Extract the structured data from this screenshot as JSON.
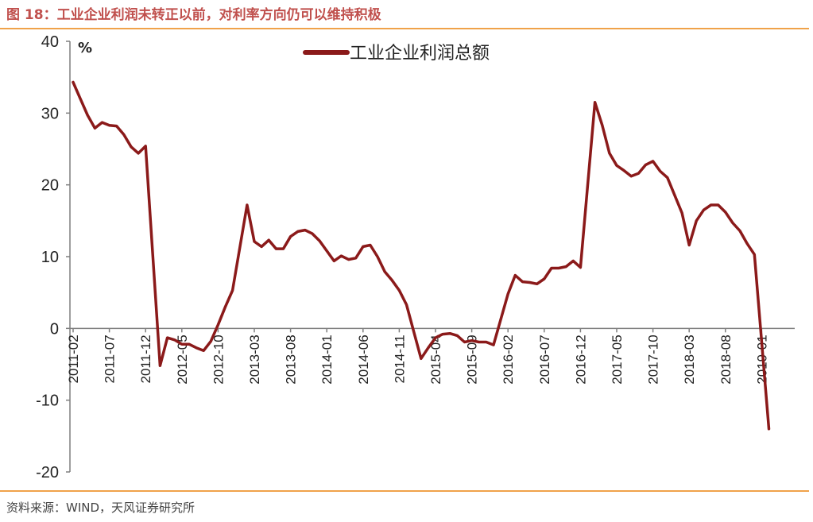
{
  "figure_title": "图 18：工业企业利润未转正以前，对利率方向仍可以维持积极",
  "source": "资料来源：WIND，天风证券研究所",
  "chart_data": {
    "type": "line",
    "title": "",
    "xlabel": "",
    "ylabel": "",
    "unit_label": "%",
    "ylim": [
      -20,
      40
    ],
    "yticks": [
      -20,
      -10,
      0,
      10,
      20,
      30,
      40
    ],
    "xtick_labels": [
      "2011-02",
      "2011-07",
      "2011-12",
      "2012-05",
      "2012-10",
      "2013-03",
      "2013-08",
      "2014-01",
      "2014-06",
      "2014-11",
      "2015-04",
      "2015-09",
      "2016-02",
      "2016-07",
      "2016-12",
      "2017-05",
      "2017-10",
      "2018-03",
      "2018-08",
      "2019-01"
    ],
    "legend_position": "top-center",
    "grid": false,
    "series": [
      {
        "name": "工业企业利润总额",
        "color": "#8b1a1a",
        "x": [
          "2011-02",
          "2011-03",
          "2011-04",
          "2011-05",
          "2011-06",
          "2011-07",
          "2011-08",
          "2011-09",
          "2011-10",
          "2011-11",
          "2011-12",
          "2012-02",
          "2012-03",
          "2012-04",
          "2012-05",
          "2012-06",
          "2012-07",
          "2012-08",
          "2012-09",
          "2012-10",
          "2012-11",
          "2012-12",
          "2013-02",
          "2013-03",
          "2013-04",
          "2013-05",
          "2013-06",
          "2013-07",
          "2013-08",
          "2013-09",
          "2013-10",
          "2013-11",
          "2013-12",
          "2014-02",
          "2014-03",
          "2014-04",
          "2014-05",
          "2014-06",
          "2014-07",
          "2014-08",
          "2014-09",
          "2014-10",
          "2014-11",
          "2014-12",
          "2015-02",
          "2015-03",
          "2015-04",
          "2015-05",
          "2015-06",
          "2015-07",
          "2015-08",
          "2015-09",
          "2015-10",
          "2015-11",
          "2015-12",
          "2016-02",
          "2016-03",
          "2016-04",
          "2016-05",
          "2016-06",
          "2016-07",
          "2016-08",
          "2016-09",
          "2016-10",
          "2016-11",
          "2016-12",
          "2017-02",
          "2017-03",
          "2017-04",
          "2017-05",
          "2017-06",
          "2017-07",
          "2017-08",
          "2017-09",
          "2017-10",
          "2017-11",
          "2017-12",
          "2018-02",
          "2018-03",
          "2018-04",
          "2018-05",
          "2018-06",
          "2018-07",
          "2018-08",
          "2018-09",
          "2018-10",
          "2018-11",
          "2018-12",
          "2019-02"
        ],
        "values": [
          34.3,
          32.0,
          29.7,
          27.9,
          28.7,
          28.3,
          28.2,
          27.0,
          25.3,
          24.4,
          25.4,
          -5.2,
          -1.3,
          -1.6,
          -2.2,
          -2.2,
          -2.7,
          -3.1,
          -1.8,
          0.5,
          3.0,
          5.3,
          17.2,
          12.1,
          11.4,
          12.3,
          11.1,
          11.1,
          12.8,
          13.5,
          13.7,
          13.2,
          12.2,
          9.4,
          10.1,
          9.6,
          9.8,
          11.4,
          11.6,
          10.0,
          7.9,
          6.7,
          5.3,
          3.3,
          -4.2,
          -2.7,
          -1.3,
          -0.8,
          -0.7,
          -1.0,
          -1.9,
          -1.7,
          -1.9,
          -1.9,
          -2.3,
          4.8,
          7.4,
          6.5,
          6.4,
          6.2,
          6.9,
          8.4,
          8.4,
          8.6,
          9.4,
          8.5,
          31.5,
          28.3,
          24.4,
          22.7,
          22.0,
          21.2,
          21.6,
          22.8,
          23.3,
          21.9,
          21.0,
          16.1,
          11.6,
          15.0,
          16.5,
          17.2,
          17.2,
          16.2,
          14.7,
          13.6,
          11.8,
          10.3,
          -14.0
        ]
      }
    ]
  }
}
